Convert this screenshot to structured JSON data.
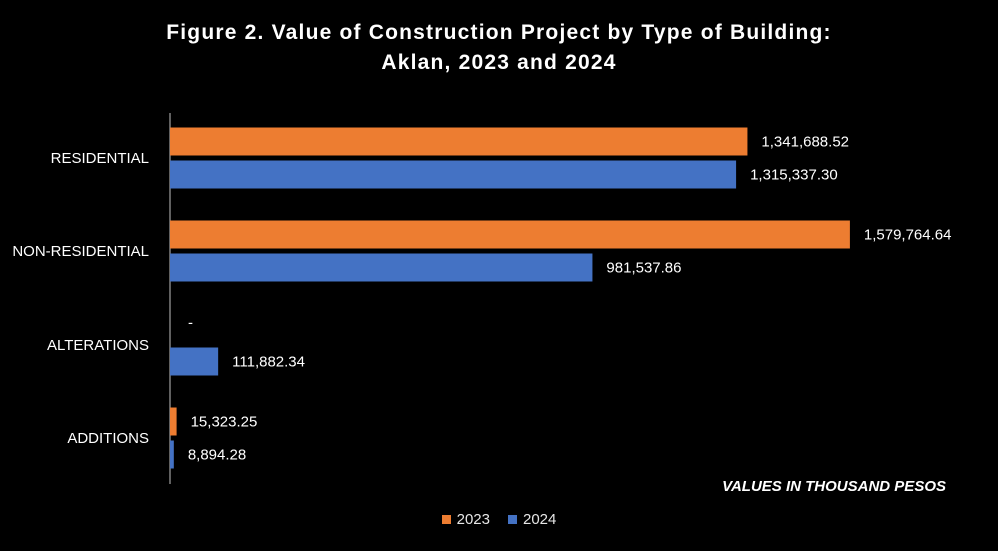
{
  "chart_data": {
    "type": "bar",
    "orientation": "horizontal",
    "title": "Figure 2. Value of Construction Project by Type of Building:",
    "subtitle": "Aklan, 2023 and 2024",
    "categories": [
      "RESIDENTIAL",
      "NON-RESIDENTIAL",
      "ALTERATIONS",
      "ADDITIONS"
    ],
    "series": [
      {
        "name": "2023",
        "color": "#ED7D31",
        "values": [
          1341688.52,
          1579764.64,
          0,
          15323.25
        ],
        "labels": [
          "1,341,688.52",
          "1,579,764.64",
          "-",
          "15,323.25"
        ]
      },
      {
        "name": "2024",
        "color": "#4472C4",
        "values": [
          1315337.3,
          981537.86,
          111882.34,
          8894.28
        ],
        "labels": [
          "1,315,337.30",
          "981,537.86",
          "111,882.34",
          "8,894.28"
        ]
      }
    ],
    "annotation": "VALUES IN THOUSAND PESOS",
    "xlim": [
      0,
      1580000
    ],
    "grid": false,
    "legend_position": "bottom"
  }
}
